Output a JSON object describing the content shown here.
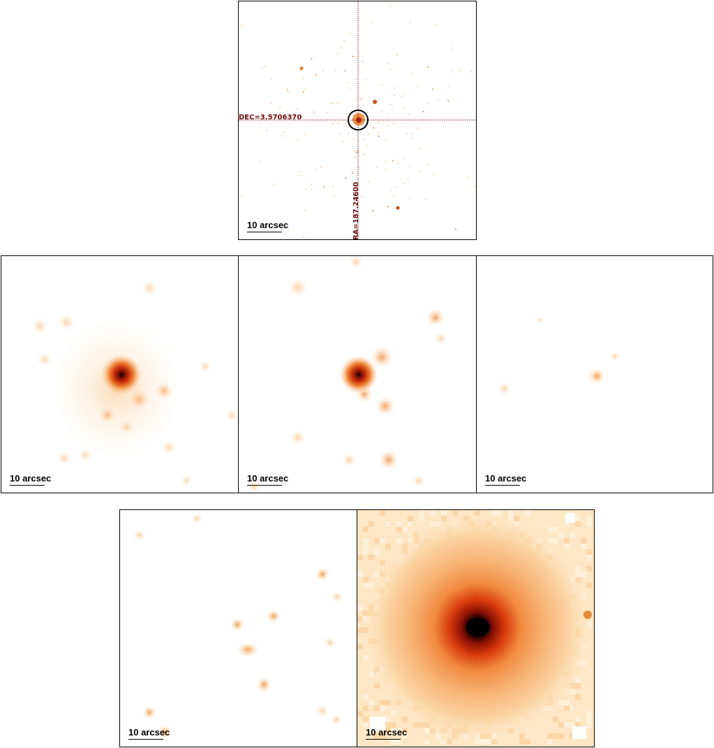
{
  "panels": {
    "top": {
      "scale_label": "10 arcsec",
      "dec_label": "DEC=3.5706370",
      "ra_label": "RA=187.24600"
    },
    "mid1": {
      "scale_label": "10 arcsec"
    },
    "mid2": {
      "scale_label": "10 arcsec"
    },
    "mid3": {
      "scale_label": "10 arcsec"
    },
    "bot1": {
      "scale_label": "10 arcsec"
    },
    "bot2": {
      "scale_label": "10 arcsec"
    }
  },
  "colors": {
    "crosshair": "#7a0a0a",
    "frame": "#000000"
  }
}
